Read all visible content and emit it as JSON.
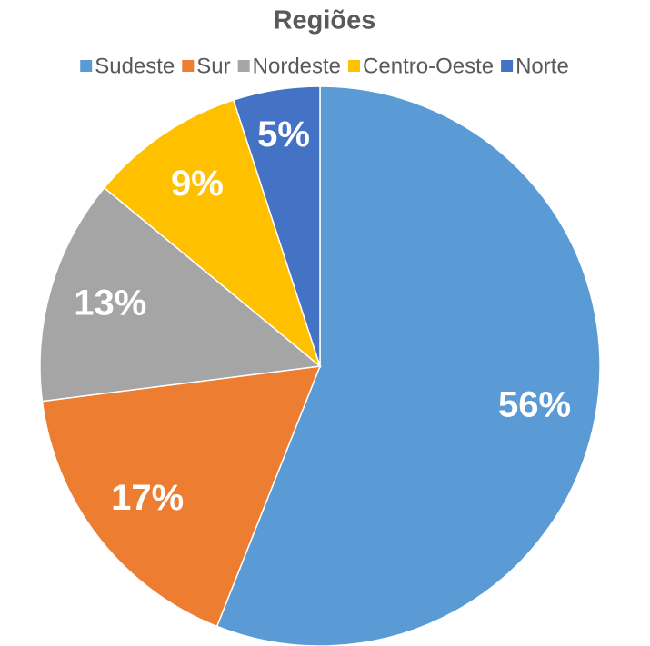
{
  "chart_data": {
    "type": "pie",
    "title": "Regiões",
    "categories": [
      "Sudeste",
      "Sur",
      "Nordeste",
      "Centro-Oeste",
      "Norte"
    ],
    "values": [
      56,
      17,
      13,
      9,
      5
    ],
    "value_labels": [
      "56%",
      "17%",
      "13%",
      "9%",
      "5%"
    ],
    "colors": [
      "#5b9bd5",
      "#ed7d31",
      "#a5a5a5",
      "#ffc000",
      "#4472c4"
    ],
    "legend": "top"
  }
}
